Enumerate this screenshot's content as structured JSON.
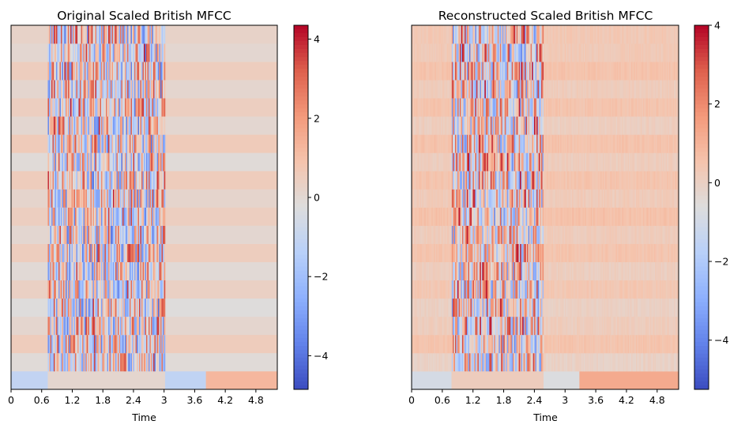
{
  "chart_data": [
    {
      "type": "heatmap",
      "title": "Original Scaled British MFCC",
      "xlabel": "Time",
      "ylabel": "",
      "x_ticks": [
        "0",
        "0.6",
        "1.2",
        "1.8",
        "2.4",
        "3",
        "3.6",
        "4.2",
        "4.8"
      ],
      "x_tick_values": [
        0,
        0.6,
        1.2,
        1.8,
        2.4,
        3.0,
        3.6,
        4.2,
        4.8
      ],
      "xlim": [
        0,
        5.22
      ],
      "n_coefficients": 20,
      "colormap": "coolwarm",
      "clim": [
        -4.85,
        4.35
      ],
      "colorbar_ticks": [
        "4",
        "2",
        "0",
        "−2",
        "−4"
      ],
      "colorbar_tick_values": [
        4,
        2,
        0,
        -2,
        -4
      ],
      "active_interval": [
        0.72,
        3.02
      ],
      "silence_row_levels": [
        -1.1,
        -0.1,
        0.55,
        0.1,
        -0.2,
        0.35,
        -0.05,
        0.5,
        0.05,
        0.45,
        0.15,
        0.55,
        -0.1,
        0.6,
        0.05,
        0.45,
        0.1,
        0.5,
        0.05,
        0.25
      ],
      "bottom_row_segments": [
        {
          "x_start": 0,
          "x_end": 0.72,
          "level": -1.1
        },
        {
          "x_start": 0.72,
          "x_end": 3.02,
          "level": 0.1
        },
        {
          "x_start": 3.02,
          "x_end": 3.82,
          "level": -1.15
        },
        {
          "x_start": 3.82,
          "x_end": 5.22,
          "level": 1.25
        }
      ]
    },
    {
      "type": "heatmap",
      "title": "Reconstructed Scaled British MFCC",
      "xlabel": "Time",
      "ylabel": "",
      "x_ticks": [
        "0",
        "0.6",
        "1.2",
        "1.8",
        "2.4",
        "3",
        "3.6",
        "4.2",
        "4.8"
      ],
      "x_tick_values": [
        0,
        0.6,
        1.2,
        1.8,
        2.4,
        3.0,
        3.6,
        4.2,
        4.8
      ],
      "xlim": [
        0,
        5.22
      ],
      "n_coefficients": 20,
      "colormap": "coolwarm",
      "clim": [
        -5.25,
        4.0
      ],
      "colorbar_ticks": [
        "4",
        "2",
        "0",
        "−2",
        "−4"
      ],
      "colorbar_tick_values": [
        4,
        2,
        0,
        -2,
        -4
      ],
      "active_interval": [
        0.78,
        2.58
      ],
      "silence_row_levels": [
        -0.9,
        -0.05,
        0.5,
        0.15,
        0.0,
        0.4,
        0.1,
        0.5,
        0.2,
        0.6,
        0.25,
        0.5,
        0.15,
        0.55,
        0.1,
        0.5,
        0.2,
        0.55,
        0.3,
        0.35
      ],
      "bottom_row_segments": [
        {
          "x_start": 0,
          "x_end": 0.78,
          "level": -0.9
        },
        {
          "x_start": 0.78,
          "x_end": 2.58,
          "level": 0.15
        },
        {
          "x_start": 2.58,
          "x_end": 3.28,
          "level": -0.7
        },
        {
          "x_start": 3.28,
          "x_end": 5.22,
          "level": 1.25
        }
      ]
    }
  ]
}
